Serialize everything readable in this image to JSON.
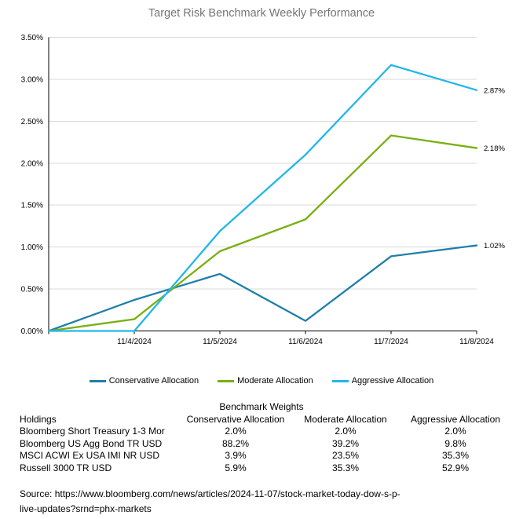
{
  "chart_data": {
    "type": "line",
    "title": "Target Risk Benchmark Weekly Performance",
    "x_labels": [
      "",
      "11/4/2024",
      "11/5/2024",
      "11/6/2024",
      "11/7/2024",
      "11/8/2024"
    ],
    "ylim": [
      0,
      3.5
    ],
    "yticks": [
      {
        "value": 0.0,
        "label": "0.00%"
      },
      {
        "value": 0.5,
        "label": "0.50%"
      },
      {
        "value": 1.0,
        "label": "1.00%"
      },
      {
        "value": 1.5,
        "label": "1.50%"
      },
      {
        "value": 2.0,
        "label": "2.00%"
      },
      {
        "value": 2.5,
        "label": "2.50%"
      },
      {
        "value": 3.0,
        "label": "3.00%"
      },
      {
        "value": 3.5,
        "label": "3.50%"
      }
    ],
    "grid": true,
    "legend_position": "bottom",
    "series": [
      {
        "name": "Conservative Allocation",
        "color": "#1F7FA9",
        "values": [
          0,
          0.37,
          0.68,
          0.12,
          0.89,
          1.02
        ],
        "end_label": "1.02%"
      },
      {
        "name": "Moderate Allocation",
        "color": "#79AF12",
        "values": [
          0,
          0.14,
          0.95,
          1.33,
          2.33,
          2.18
        ],
        "end_label": "2.18%"
      },
      {
        "name": "Aggressive Allocation",
        "color": "#22B6EC",
        "values": [
          0,
          0.0,
          1.19,
          2.1,
          3.17,
          2.87
        ],
        "end_label": "2.87%"
      }
    ]
  },
  "table": {
    "title": "Benchmark Weights",
    "headers": [
      "Holdings",
      "Conservative Allocation",
      "Moderate Allocation",
      "Aggressive Allocation"
    ],
    "rows": [
      [
        "Bloomberg Short Treasury 1-3 Mor",
        "2.0%",
        "2.0%",
        "2.0%"
      ],
      [
        "Bloomberg US Agg Bond TR USD",
        "88.2%",
        "39.2%",
        "9.8%"
      ],
      [
        "MSCI ACWI Ex USA IMI NR USD",
        "3.9%",
        "23.5%",
        "35.3%"
      ],
      [
        "Russell 3000 TR USD",
        "5.9%",
        "35.3%",
        "52.9%"
      ]
    ]
  },
  "source": {
    "line1": "Source: https://www.bloomberg.com/news/articles/2024-11-07/stock-market-today-dow-s-p-",
    "line2": "live-updates?srnd=phx-markets"
  },
  "colors": {
    "title_text": "#767676",
    "grid": "#D9D9D9",
    "axis": "#000000",
    "text": "#000000",
    "background": "#FFFFFF"
  }
}
